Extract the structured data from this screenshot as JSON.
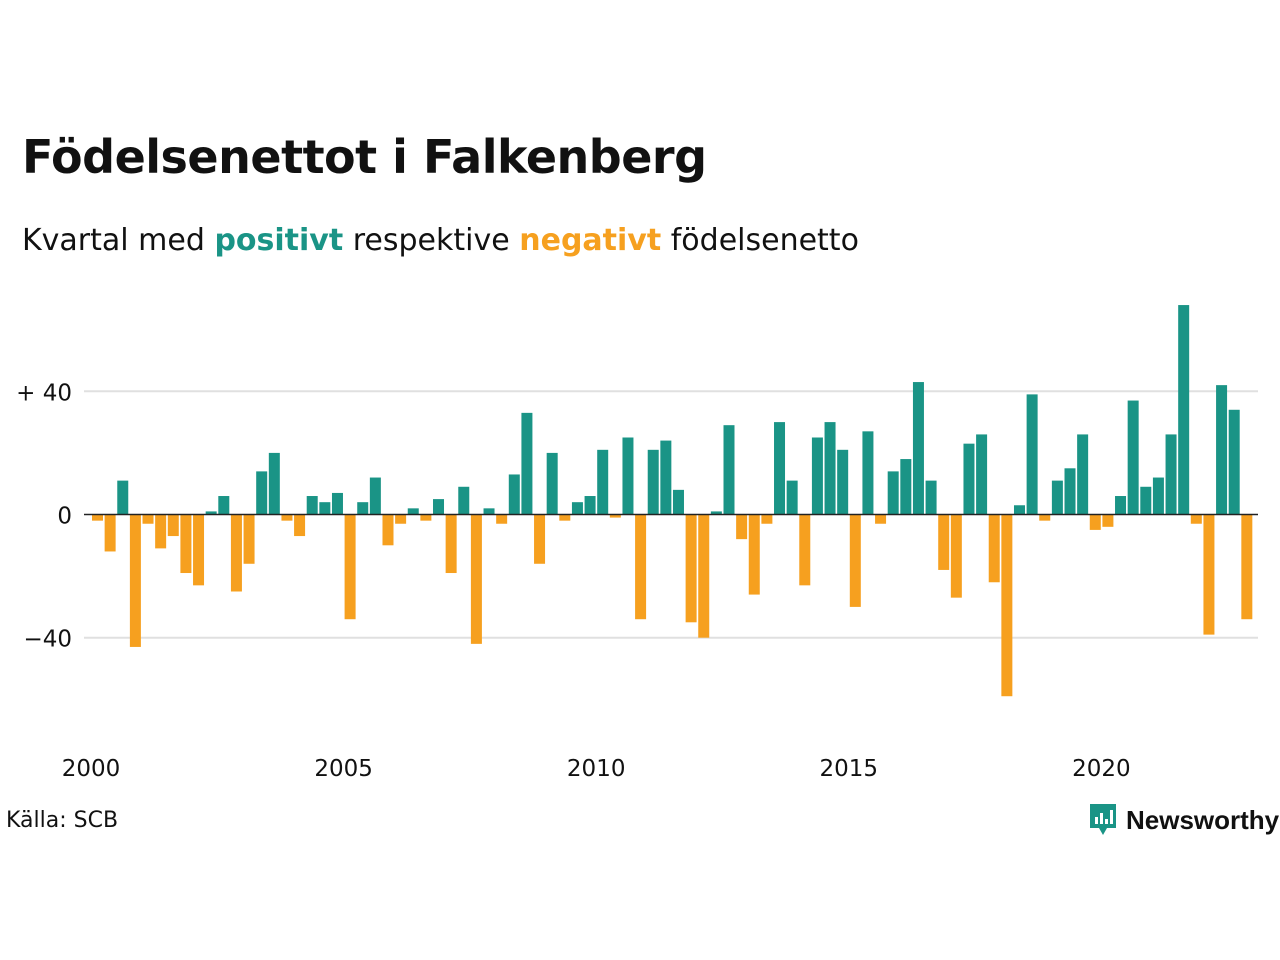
{
  "title": "Födelsenettot i Falkenberg",
  "subtitle": {
    "prefix": "Kvartal med",
    "positive": "positivt",
    "middle": "respektive",
    "negative": "negativt",
    "suffix": "födelsenetto"
  },
  "source": "Källa: SCB",
  "brand": "Newsworthy",
  "colors": {
    "positive": "#1a9486",
    "negative": "#f6a01f",
    "grid": "#e0e0e0",
    "axis": "#222222",
    "text": "#111111"
  },
  "chart_data": {
    "type": "bar",
    "x_start": "2000 Q1",
    "x_ticks": [
      "2000",
      "2005",
      "2010",
      "2015",
      "2020"
    ],
    "y_ticks": [
      {
        "value": 40,
        "label": "+ 40"
      },
      {
        "value": 0,
        "label": "0"
      },
      {
        "value": -40,
        "label": "−40"
      }
    ],
    "ylim": [
      -62,
      72
    ],
    "grid": true,
    "values": [
      -2,
      -12,
      11,
      -43,
      -3,
      -11,
      -7,
      -19,
      -23,
      1,
      6,
      -25,
      -16,
      14,
      20,
      -2,
      -7,
      6,
      4,
      7,
      -34,
      4,
      12,
      -10,
      -3,
      2,
      -2,
      5,
      -19,
      9,
      -42,
      2,
      -3,
      13,
      33,
      -16,
      20,
      -2,
      4,
      6,
      21,
      -1,
      25,
      -34,
      21,
      24,
      8,
      -35,
      -40,
      1,
      29,
      -8,
      -26,
      -3,
      30,
      11,
      -23,
      25,
      30,
      21,
      -30,
      27,
      -3,
      14,
      18,
      43,
      11,
      -18,
      -27,
      23,
      26,
      -22,
      -59,
      3,
      39,
      -2,
      11,
      15,
      26,
      -5,
      -4,
      6,
      37,
      9,
      12,
      26,
      68,
      -3,
      -39,
      42,
      34,
      -34
    ]
  }
}
